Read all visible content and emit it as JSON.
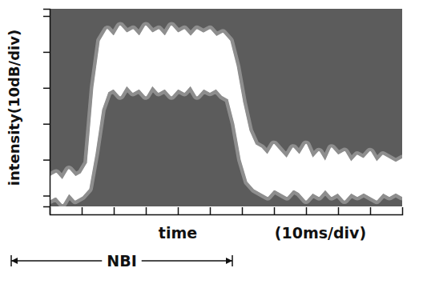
{
  "chart_data": {
    "type": "area",
    "y_label": "intensity(10dB/div)",
    "x_label": "time",
    "x": [
      0,
      2,
      4,
      6,
      8,
      10,
      12,
      14,
      16,
      18,
      20,
      22,
      24,
      26,
      28,
      30,
      32,
      34,
      36,
      38,
      40,
      42,
      44,
      46,
      48,
      50,
      52,
      54,
      56,
      58,
      60,
      62,
      64,
      66,
      68,
      70,
      72,
      74,
      76,
      78,
      80,
      82,
      84,
      86,
      88,
      90,
      92,
      94,
      96,
      98,
      100,
      102,
      104,
      106,
      108,
      110
    ],
    "series": [
      {
        "color": "#ffffff",
        "values": [
          5,
          6,
          4,
          7,
          5,
          6,
          9,
          30,
          43,
          46,
          44,
          47,
          45,
          46,
          44,
          47,
          45,
          46,
          44,
          47,
          45,
          46,
          44,
          46,
          45,
          46,
          44,
          45,
          43,
          36,
          26,
          18,
          14,
          13,
          11,
          14,
          12,
          10,
          13,
          11,
          14,
          10,
          12,
          9,
          13,
          11,
          12,
          9,
          11,
          10,
          12,
          9,
          11,
          10,
          9,
          10
        ]
      },
      {
        "color": "#ffffff",
        "values": [
          -1,
          0,
          -2,
          1,
          -1,
          0,
          2,
          12,
          24,
          29,
          30,
          28,
          31,
          29,
          30,
          28,
          31,
          29,
          30,
          28,
          30,
          29,
          31,
          28,
          30,
          29,
          30,
          28,
          27,
          20,
          10,
          4,
          2,
          1,
          0,
          2,
          1,
          0,
          2,
          1,
          -1,
          1,
          0,
          2,
          0,
          1,
          -1,
          1,
          0,
          1,
          0,
          -1,
          1,
          0,
          1,
          0
        ]
      }
    ],
    "xlim": [
      0,
      110
    ],
    "xticks": [
      0,
      10,
      20,
      30,
      40,
      50,
      60,
      70,
      80,
      90,
      100
    ],
    "ylim": [
      -3,
      52
    ],
    "yticks": [
      0,
      10,
      20,
      30,
      40,
      50
    ],
    "tick_labels": false,
    "grid": false,
    "annotations": [
      {
        "text": "(10ms/div)"
      },
      {
        "text": "NBI",
        "start": -12,
        "end": 57
      }
    ]
  }
}
